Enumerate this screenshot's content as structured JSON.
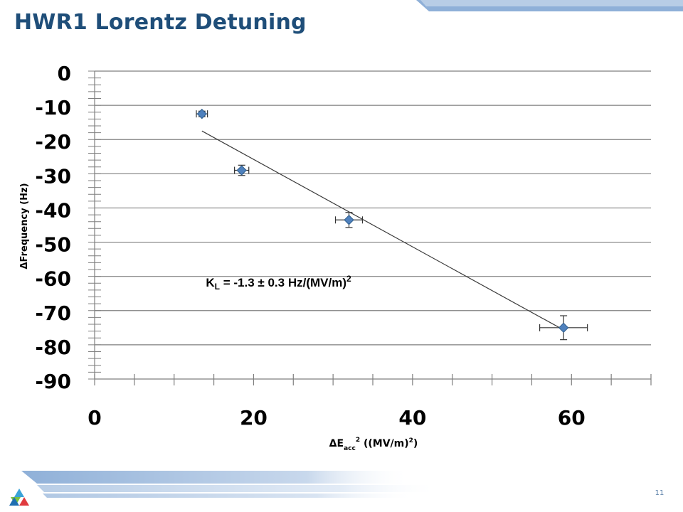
{
  "slide": {
    "title": "HWR1 Lorentz Detuning",
    "page_number": "11"
  },
  "colors": {
    "title": "#1f4e79",
    "marker": "#4f81bd",
    "marker_edge": "#2e5c8a",
    "fit_line": "#3a3a3a",
    "grid": "#7f7f7f",
    "band": "#8fb0d8"
  },
  "chart_data": {
    "type": "scatter",
    "ylabel": "ΔFrequency (Hz)",
    "xlabel": "ΔE_acc^2 ((MV/m)^2)",
    "xlim": [
      0,
      70
    ],
    "ylim": [
      -90,
      0
    ],
    "x_tick_labels": [
      "0",
      "20",
      "40",
      "60"
    ],
    "y_tick_labels": [
      "0",
      "-10",
      "-20",
      "-30",
      "-40",
      "-50",
      "-60",
      "-70",
      "-80",
      "-90"
    ],
    "grid": "horizontal",
    "series": [
      {
        "points": [
          {
            "x": 13.5,
            "y": -12.5,
            "x_err": 0.7,
            "y_err": 0.8
          },
          {
            "x": 18.5,
            "y": -29.0,
            "x_err": 0.9,
            "y_err": 1.5
          },
          {
            "x": 32.0,
            "y": -43.5,
            "x_err": 1.7,
            "y_err": 2.2
          },
          {
            "x": 59.0,
            "y": -75.0,
            "x_err": 3.0,
            "y_err": 3.5
          }
        ]
      }
    ],
    "fit_line": {
      "x": [
        13.5,
        58.5
      ],
      "y": [
        -17.5,
        -75.0
      ]
    },
    "annotation": {
      "prefix": "K",
      "subscript": "L",
      "text": " = -1.3 ± 0.3 Hz/(MV/m)",
      "superscript": "2",
      "x": 14.0,
      "y": -63.0
    }
  }
}
